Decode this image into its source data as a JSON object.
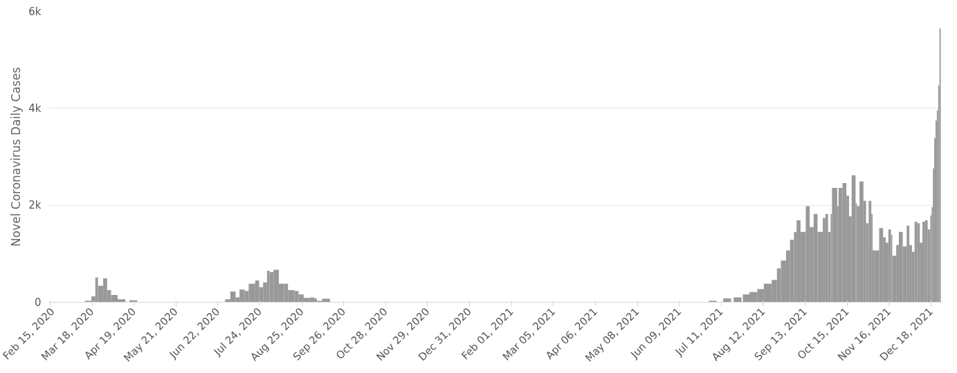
{
  "chart_data": {
    "type": "bar",
    "ylabel": "Novel Coronavirus Daily Cases",
    "color": "#999999",
    "x": [
      "2020-03-13",
      "2020-03-18",
      "2020-03-21",
      "2020-03-23",
      "2020-03-27",
      "2020-03-30",
      "2020-04-02",
      "2020-04-07",
      "2020-04-16",
      "2020-06-28",
      "2020-07-02",
      "2020-07-06",
      "2020-07-09",
      "2020-07-13",
      "2020-07-16",
      "2020-07-21",
      "2020-07-24",
      "2020-07-27",
      "2020-07-30",
      "2020-08-01",
      "2020-08-04",
      "2020-08-08",
      "2020-08-12",
      "2020-08-15",
      "2020-08-20",
      "2020-08-23",
      "2020-08-27",
      "2020-09-01",
      "2020-09-04",
      "2020-09-06",
      "2020-09-10",
      "2021-07-02",
      "2021-07-13",
      "2021-07-21",
      "2021-07-28",
      "2021-08-02",
      "2021-08-08",
      "2021-08-13",
      "2021-08-19",
      "2021-08-23",
      "2021-08-26",
      "2021-08-30",
      "2021-09-02",
      "2021-09-05",
      "2021-09-07",
      "2021-09-10",
      "2021-09-14",
      "2021-09-17",
      "2021-09-20",
      "2021-09-23",
      "2021-09-27",
      "2021-09-29",
      "2021-10-01",
      "2021-10-03",
      "2021-10-04",
      "2021-10-08",
      "2021-10-09",
      "2021-10-12",
      "2021-10-15",
      "2021-10-17",
      "2021-10-19",
      "2021-10-22",
      "2021-10-23",
      "2021-10-25",
      "2021-10-28",
      "2021-10-30",
      "2021-11-01",
      "2021-11-03",
      "2021-11-04",
      "2021-11-06",
      "2021-11-09",
      "2021-11-12",
      "2021-11-14",
      "2021-11-16",
      "2021-11-18",
      "2021-11-19",
      "2021-11-22",
      "2021-11-24",
      "2021-11-27",
      "2021-11-30",
      "2021-12-02",
      "2021-12-04",
      "2021-12-06",
      "2021-12-08",
      "2021-12-10",
      "2021-12-12",
      "2021-12-14",
      "2021-12-16",
      "2021-12-18",
      "2021-12-19",
      "2021-12-20",
      "2021-12-21",
      "2021-12-22",
      "2021-12-23",
      "2021-12-24",
      "2021-12-25"
    ],
    "values": [
      30,
      120,
      510,
      340,
      490,
      250,
      150,
      60,
      40,
      60,
      220,
      100,
      260,
      230,
      380,
      450,
      310,
      410,
      650,
      620,
      670,
      380,
      380,
      250,
      230,
      160,
      90,
      100,
      80,
      30,
      70,
      30,
      80,
      100,
      160,
      210,
      270,
      380,
      460,
      700,
      860,
      1070,
      1290,
      1450,
      1690,
      1450,
      1980,
      1550,
      1820,
      1450,
      1740,
      1820,
      1450,
      1820,
      2360,
      1980,
      2360,
      2460,
      2200,
      1770,
      2620,
      2040,
      1980,
      2490,
      2090,
      1630,
      2090,
      1820,
      1070,
      1070,
      1530,
      1340,
      1230,
      1500,
      1390,
      960,
      1180,
      1450,
      1150,
      1580,
      1180,
      1040,
      1660,
      1630,
      1230,
      1660,
      1690,
      1500,
      1790,
      1960,
      2760,
      3380,
      3750,
      3960,
      4470,
      5650
    ],
    "xlim": [
      "2020-02-14",
      "2021-12-26"
    ],
    "xticks": [
      {
        "value": "2020-02-15",
        "label": "Feb 15, 2020"
      },
      {
        "value": "2020-03-18",
        "label": "Mar 18, 2020"
      },
      {
        "value": "2020-04-19",
        "label": "Apr 19, 2020"
      },
      {
        "value": "2020-05-21",
        "label": "May 21, 2020"
      },
      {
        "value": "2020-06-22",
        "label": "Jun 22, 2020"
      },
      {
        "value": "2020-07-24",
        "label": "Jul 24, 2020"
      },
      {
        "value": "2020-08-25",
        "label": "Aug 25, 2020"
      },
      {
        "value": "2020-09-26",
        "label": "Sep 26, 2020"
      },
      {
        "value": "2020-10-28",
        "label": "Oct 28, 2020"
      },
      {
        "value": "2020-11-29",
        "label": "Nov 29, 2020"
      },
      {
        "value": "2020-12-31",
        "label": "Dec 31, 2020"
      },
      {
        "value": "2021-02-01",
        "label": "Feb 01, 2021"
      },
      {
        "value": "2021-03-05",
        "label": "Mar 05, 2021"
      },
      {
        "value": "2021-04-06",
        "label": "Apr 06, 2021"
      },
      {
        "value": "2021-05-08",
        "label": "May 08, 2021"
      },
      {
        "value": "2021-06-09",
        "label": "Jun 09, 2021"
      },
      {
        "value": "2021-07-11",
        "label": "Jul 11, 2021"
      },
      {
        "value": "2021-08-12",
        "label": "Aug 12, 2021"
      },
      {
        "value": "2021-09-13",
        "label": "Sep 13, 2021"
      },
      {
        "value": "2021-10-15",
        "label": "Oct 15, 2021"
      },
      {
        "value": "2021-11-16",
        "label": "Nov 16, 2021"
      },
      {
        "value": "2021-12-18",
        "label": "Dec 18, 2021"
      }
    ],
    "ylim": [
      0,
      6000
    ],
    "yticks": [
      0,
      {
        "value": 2000,
        "label": "2k"
      },
      {
        "value": 4000,
        "label": "4k"
      },
      {
        "value": 6000,
        "label": "6k"
      }
    ],
    "grid": "y"
  }
}
